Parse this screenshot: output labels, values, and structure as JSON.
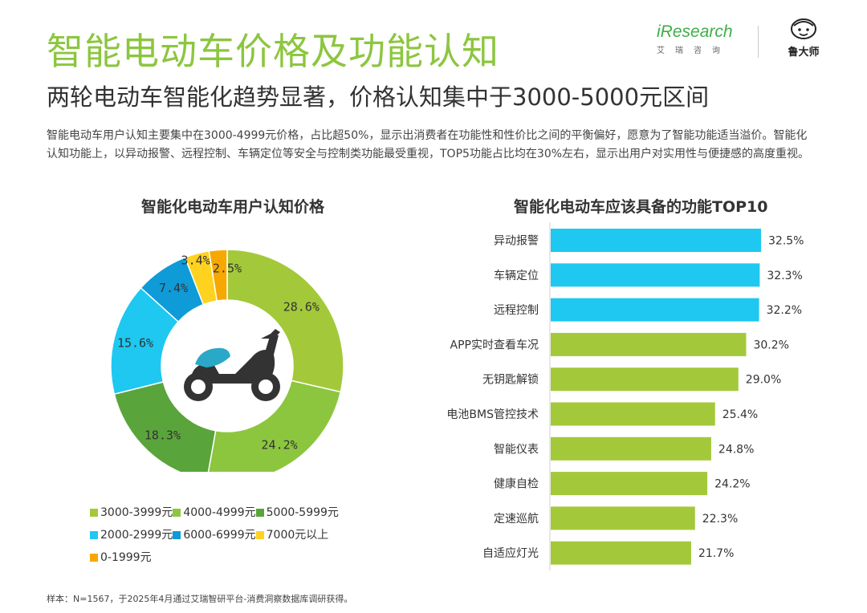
{
  "header": {
    "title": "智能电动车价格及功能认知",
    "subtitle": "两轮电动车智能化趋势显著，价格认知集中于3000-5000元区间",
    "description": "智能电动车用户认知主要集中在3000-4999元价格，占比超50%，显示出消费者在功能性和性价比之间的平衡偏好，愿意为了智能功能适当溢价。智能化认知功能上，以异动报警、远程控制、车辆定位等安全与控制类功能最受重视，TOP5功能占比均在30%左右，显示出用户对实用性与便捷感的高度重视。"
  },
  "logos": {
    "iresearch_word": "iResearch",
    "iresearch_sub": "艾瑞咨询",
    "ludashi": "鲁大师"
  },
  "icons": {
    "center": "scooter-icon"
  },
  "colors": {
    "green_light": "#a3c93a",
    "green_mid": "#8cc63f",
    "green_dark": "#5aa43c",
    "cyan": "#1ec8f0",
    "blue": "#0e9bd8",
    "yellow": "#ffd21f",
    "orange": "#f7a800",
    "bar_blue": "#1ec8f0",
    "bar_green": "#a3c93a",
    "title_green": "#8cc63f"
  },
  "footnote": "样本：N=1567，于2025年4月通过艾瑞智研平台-消费洞察数据库调研获得。",
  "chart_data": [
    {
      "type": "pie",
      "title": "智能化电动车用户认知价格",
      "donut": true,
      "slices": [
        {
          "label": "3000-3999元",
          "value": 28.6,
          "value_label": "28.6%",
          "color": "#a3c93a"
        },
        {
          "label": "4000-4999元",
          "value": 24.2,
          "value_label": "24.2%",
          "color": "#8cc63f"
        },
        {
          "label": "5000-5999元",
          "value": 18.3,
          "value_label": "18.3%",
          "color": "#5aa43c"
        },
        {
          "label": "2000-2999元",
          "value": 15.6,
          "value_label": "15.6%",
          "color": "#1ec8f0"
        },
        {
          "label": "6000-6999元",
          "value": 7.4,
          "value_label": "7.4%",
          "color": "#0e9bd8"
        },
        {
          "label": "7000元以上",
          "value": 3.4,
          "value_label": "3.4%",
          "color": "#ffd21f"
        },
        {
          "label": "0-1999元",
          "value": 2.5,
          "value_label": "2.5%",
          "color": "#f7a800"
        }
      ],
      "legend_rows": [
        [
          0,
          1,
          2
        ],
        [
          3,
          4,
          5
        ],
        [
          6
        ]
      ]
    },
    {
      "type": "bar",
      "orientation": "horizontal",
      "title": "智能化电动车应该具备的功能TOP10",
      "categories": [
        "异动报警",
        "车辆定位",
        "远程控制",
        "APP实时查看车况",
        "无钥匙解锁",
        "电池BMS管控技术",
        "智能仪表",
        "健康自检",
        "定速巡航",
        "自适应灯光"
      ],
      "values": [
        32.5,
        32.3,
        32.2,
        30.2,
        29.0,
        25.4,
        24.8,
        24.2,
        22.3,
        21.7
      ],
      "value_labels": [
        "32.5%",
        "32.3%",
        "32.2%",
        "30.2%",
        "29.0%",
        "25.4%",
        "24.8%",
        "24.2%",
        "22.3%",
        "21.7%"
      ],
      "bar_colors": [
        "#1ec8f0",
        "#1ec8f0",
        "#1ec8f0",
        "#a3c93a",
        "#a3c93a",
        "#a3c93a",
        "#a3c93a",
        "#a3c93a",
        "#a3c93a",
        "#a3c93a"
      ]
    }
  ]
}
